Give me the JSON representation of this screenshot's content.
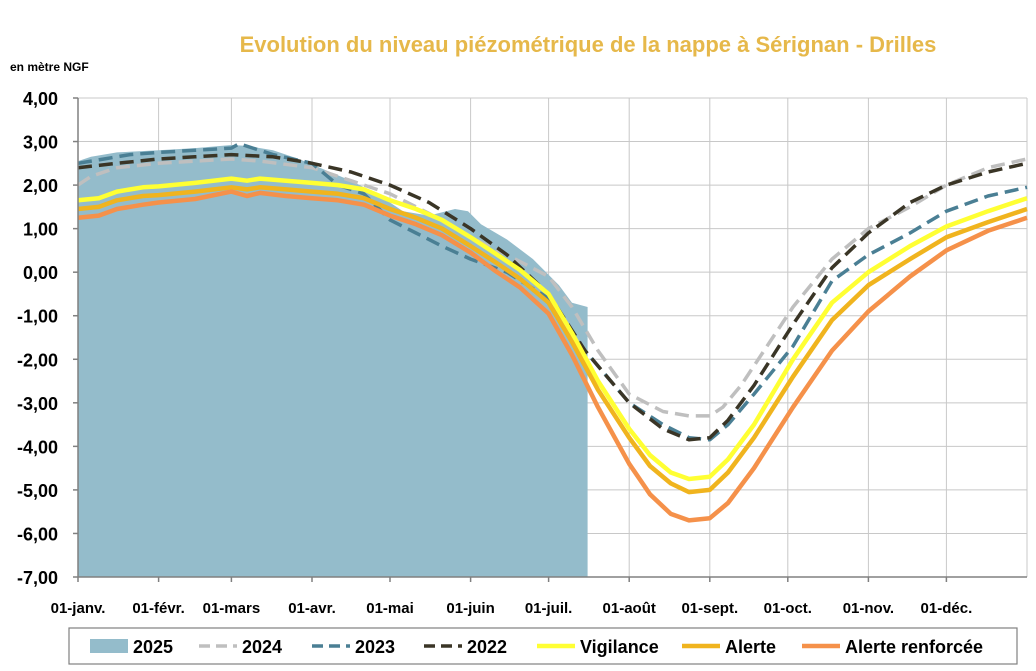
{
  "chart_data": {
    "type": "line",
    "title": "Evolution du niveau piézométrique de la nappe à Sérignan  - Drilles",
    "ylabel": "en mètre NGF",
    "xlabel": "",
    "ylim": [
      -7,
      4
    ],
    "xlim_day": [
      0,
      365
    ],
    "yticks": [
      "4,00",
      "3,00",
      "2,00",
      "1,00",
      "0,00",
      "-1,00",
      "-2,00",
      "-3,00",
      "-4,00",
      "-5,00",
      "-6,00",
      "-7,00"
    ],
    "ytick_values": [
      4,
      3,
      2,
      1,
      0,
      -1,
      -2,
      -3,
      -4,
      -5,
      -6,
      -7
    ],
    "xticks": [
      "01-janv.",
      "01-févr.",
      "01-mars",
      "01-avr.",
      "01-mai",
      "01-juin",
      "01-juil.",
      "01-août",
      "01-sept.",
      "01-oct.",
      "01-nov.",
      "01-déc."
    ],
    "xtick_days": [
      0,
      31,
      59,
      90,
      120,
      151,
      181,
      212,
      243,
      273,
      304,
      334
    ],
    "grid": true,
    "legend": "bottom",
    "colors": {
      "2025": "#94bccb",
      "2024": "#bfbfbf",
      "2023": "#4a7f94",
      "2022": "#3a3526",
      "Vigilance": "#ffff33",
      "Alerte": "#f0b41e",
      "Alerte renforcée": "#f5914a",
      "title": "#e6b84a"
    },
    "series": [
      {
        "name": "2025",
        "style": "area",
        "x": [
          0,
          5,
          15,
          31,
          45,
          59,
          65,
          75,
          85,
          95,
          105,
          115,
          125,
          135,
          145,
          150,
          155,
          165,
          175,
          185,
          190,
          196
        ],
        "y": [
          2.55,
          2.65,
          2.75,
          2.8,
          2.85,
          2.92,
          2.9,
          2.8,
          2.6,
          2.35,
          2.1,
          1.8,
          1.4,
          1.3,
          1.45,
          1.4,
          1.1,
          0.75,
          0.3,
          -0.3,
          -0.7,
          -0.8
        ]
      },
      {
        "name": "2024",
        "style": "dashed",
        "x": [
          0,
          5,
          15,
          31,
          45,
          59,
          70,
          90,
          105,
          120,
          135,
          151,
          165,
          181,
          190,
          200,
          212,
          225,
          235,
          243,
          248,
          255,
          265,
          275,
          290,
          304,
          320,
          334,
          350,
          365
        ],
        "y": [
          2.0,
          2.2,
          2.4,
          2.5,
          2.55,
          2.6,
          2.55,
          2.4,
          2.1,
          1.8,
          1.35,
          0.8,
          0.4,
          -0.1,
          -0.8,
          -1.8,
          -2.8,
          -3.2,
          -3.3,
          -3.3,
          -3.1,
          -2.6,
          -1.7,
          -0.8,
          0.3,
          1.0,
          1.5,
          2.0,
          2.4,
          2.6
        ]
      },
      {
        "name": "2023",
        "style": "dashed",
        "x": [
          0,
          10,
          20,
          31,
          45,
          59,
          62,
          75,
          90,
          100,
          110,
          120,
          130,
          140,
          151,
          165,
          181,
          195,
          212,
          225,
          235,
          243,
          250,
          260,
          275,
          290,
          304,
          320,
          334,
          350,
          365
        ],
        "y": [
          2.5,
          2.6,
          2.7,
          2.75,
          2.8,
          2.85,
          2.95,
          2.7,
          2.5,
          2.0,
          1.8,
          1.2,
          0.9,
          0.6,
          0.3,
          0.0,
          -0.6,
          -1.8,
          -3.0,
          -3.5,
          -3.8,
          -3.85,
          -3.5,
          -2.8,
          -1.7,
          -0.2,
          0.4,
          0.9,
          1.4,
          1.75,
          1.95
        ]
      },
      {
        "name": "2022",
        "style": "dashed",
        "x": [
          0,
          15,
          31,
          45,
          59,
          75,
          90,
          105,
          120,
          135,
          151,
          165,
          181,
          195,
          212,
          225,
          235,
          243,
          250,
          260,
          275,
          290,
          304,
          320,
          334,
          350,
          365
        ],
        "y": [
          2.4,
          2.5,
          2.6,
          2.65,
          2.7,
          2.65,
          2.5,
          2.3,
          2.0,
          1.6,
          1.0,
          0.4,
          -0.5,
          -1.8,
          -3.0,
          -3.6,
          -3.85,
          -3.8,
          -3.4,
          -2.6,
          -1.2,
          0.1,
          0.9,
          1.6,
          2.0,
          2.3,
          2.5
        ]
      },
      {
        "name": "Vigilance",
        "style": "solid",
        "x": [
          0,
          8,
          15,
          25,
          31,
          45,
          59,
          65,
          70,
          80,
          90,
          100,
          110,
          120,
          130,
          140,
          151,
          160,
          170,
          181,
          190,
          200,
          212,
          220,
          228,
          235,
          243,
          250,
          260,
          275,
          290,
          304,
          320,
          334,
          350,
          365
        ],
        "y": [
          1.65,
          1.7,
          1.85,
          1.95,
          1.97,
          2.05,
          2.15,
          2.1,
          2.15,
          2.1,
          2.05,
          2.0,
          1.9,
          1.65,
          1.45,
          1.2,
          0.8,
          0.45,
          0.05,
          -0.5,
          -1.4,
          -2.5,
          -3.6,
          -4.2,
          -4.6,
          -4.75,
          -4.7,
          -4.3,
          -3.5,
          -2.0,
          -0.7,
          0.0,
          0.6,
          1.05,
          1.4,
          1.7
        ]
      },
      {
        "name": "Alerte",
        "style": "solid",
        "x": [
          0,
          8,
          15,
          25,
          31,
          45,
          59,
          65,
          70,
          80,
          90,
          100,
          110,
          120,
          130,
          140,
          151,
          160,
          170,
          181,
          190,
          200,
          212,
          220,
          228,
          235,
          243,
          250,
          260,
          275,
          290,
          304,
          320,
          334,
          350,
          365
        ],
        "y": [
          1.45,
          1.5,
          1.65,
          1.75,
          1.77,
          1.85,
          1.95,
          1.9,
          1.95,
          1.9,
          1.85,
          1.8,
          1.7,
          1.45,
          1.25,
          1.0,
          0.6,
          0.25,
          -0.15,
          -0.7,
          -1.6,
          -2.7,
          -3.8,
          -4.45,
          -4.85,
          -5.05,
          -5.0,
          -4.6,
          -3.8,
          -2.4,
          -1.1,
          -0.3,
          0.3,
          0.8,
          1.15,
          1.45
        ]
      },
      {
        "name": "Alerte renforcée",
        "style": "solid",
        "x": [
          0,
          8,
          15,
          25,
          31,
          45,
          59,
          65,
          70,
          80,
          90,
          100,
          110,
          120,
          130,
          140,
          151,
          160,
          170,
          181,
          190,
          200,
          212,
          220,
          228,
          235,
          243,
          250,
          260,
          275,
          290,
          304,
          320,
          334,
          350,
          365
        ],
        "y": [
          1.25,
          1.3,
          1.45,
          1.55,
          1.6,
          1.68,
          1.85,
          1.75,
          1.82,
          1.75,
          1.7,
          1.65,
          1.55,
          1.3,
          1.1,
          0.85,
          0.45,
          0.05,
          -0.35,
          -0.95,
          -1.9,
          -3.1,
          -4.4,
          -5.1,
          -5.55,
          -5.7,
          -5.65,
          -5.3,
          -4.5,
          -3.1,
          -1.8,
          -0.9,
          -0.1,
          0.5,
          0.95,
          1.25
        ]
      }
    ]
  },
  "legend_items": [
    "2025",
    "2024",
    "2023",
    "2022",
    "Vigilance",
    "Alerte",
    "Alerte renforcée"
  ]
}
